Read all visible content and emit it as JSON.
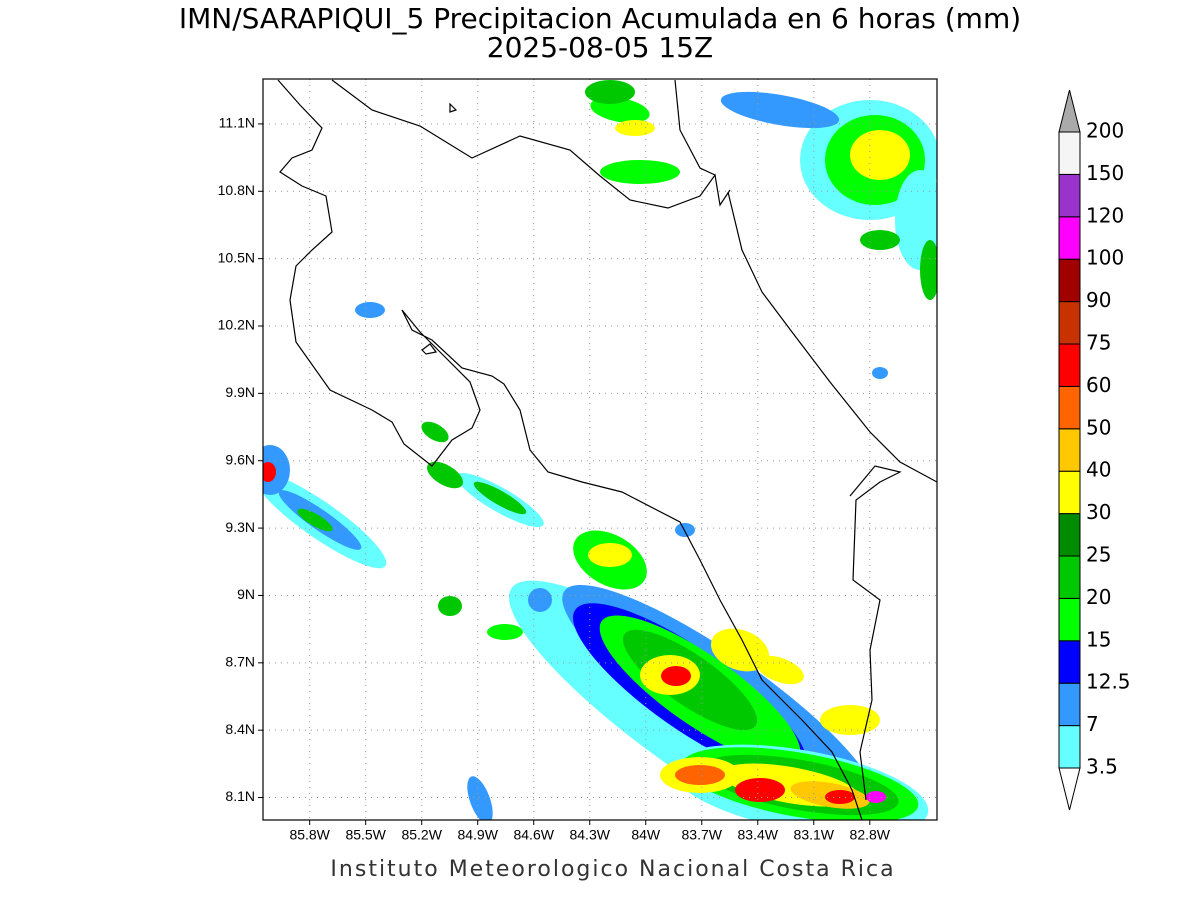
{
  "map": {
    "title": "IMN/SARAPIQUI_5 Precipitacion Acumulada en 6 horas (mm)",
    "subtitle": "2025-08-05 15Z",
    "footer": "Instituto Meteorologico Nacional Costa Rica",
    "xlim": [
      -86.05,
      -82.44
    ],
    "ylim": [
      8.0,
      11.3
    ],
    "grid": true,
    "lon_ticks": [
      {
        "value": -85.8,
        "label": "85.8W"
      },
      {
        "value": -85.5,
        "label": "85.5W"
      },
      {
        "value": -85.2,
        "label": "85.2W"
      },
      {
        "value": -84.9,
        "label": "84.9W"
      },
      {
        "value": -84.6,
        "label": "84.6W"
      },
      {
        "value": -84.3,
        "label": "84.3W"
      },
      {
        "value": -84.0,
        "label": "84W"
      },
      {
        "value": -83.7,
        "label": "83.7W"
      },
      {
        "value": -83.4,
        "label": "83.4W"
      },
      {
        "value": -83.1,
        "label": "83.1W"
      },
      {
        "value": -82.8,
        "label": "82.8W"
      }
    ],
    "lat_ticks": [
      {
        "value": 8.1,
        "label": "8.1N"
      },
      {
        "value": 8.4,
        "label": "8.4N"
      },
      {
        "value": 8.7,
        "label": "8.7N"
      },
      {
        "value": 9.0,
        "label": "9N"
      },
      {
        "value": 9.3,
        "label": "9.3N"
      },
      {
        "value": 9.6,
        "label": "9.6N"
      },
      {
        "value": 9.9,
        "label": "9.9N"
      },
      {
        "value": 10.2,
        "label": "10.2N"
      },
      {
        "value": 10.5,
        "label": "10.5N"
      },
      {
        "value": 10.8,
        "label": "10.8N"
      },
      {
        "value": 11.1,
        "label": "11.1N"
      }
    ],
    "colorbar": {
      "levels": [
        3.5,
        7,
        12.5,
        15,
        20,
        25,
        30,
        40,
        50,
        60,
        75,
        90,
        100,
        120,
        150,
        200
      ],
      "colors": [
        "#ffffff",
        "#66ffff",
        "#3399ff",
        "#0000ff",
        "#00ff00",
        "#00c800",
        "#008c00",
        "#ffff00",
        "#ffc800",
        "#ff6400",
        "#ff0000",
        "#c83200",
        "#a00000",
        "#ff00ff",
        "#9933cc",
        "#f5f5f5",
        "#aaaaaa"
      ]
    }
  }
}
